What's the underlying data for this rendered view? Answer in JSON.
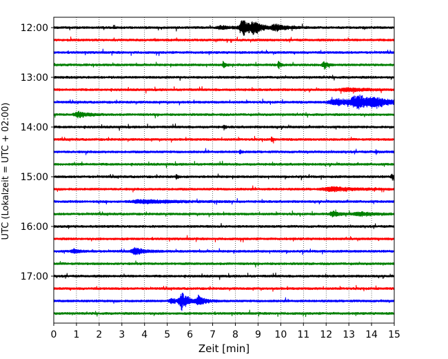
{
  "chart_data": {
    "type": "line",
    "subtype": "helicorder",
    "xlabel": "Zeit  [min]",
    "ylabel": "UTC (Lokalzeit = UTC + 02:00)",
    "xlim": [
      0,
      15
    ],
    "x_ticks": [
      "0",
      "1",
      "2",
      "3",
      "4",
      "5",
      "6",
      "7",
      "8",
      "9",
      "10",
      "11",
      "12",
      "13",
      "14",
      "15"
    ],
    "y_tick_labels": [
      "12:00",
      "13:00",
      "14:00",
      "15:00",
      "16:00",
      "17:00"
    ],
    "grid": "vertical dotted at each minute",
    "trace_interval_minutes": 15,
    "trace_colors": [
      "#000000",
      "#ff0000",
      "#0000ff",
      "#008000"
    ],
    "traces": [
      {
        "start": "12:00",
        "color": "#000000",
        "events": [
          {
            "t": 8.35,
            "amp": 1.0,
            "dur": 0.45
          },
          {
            "t": 8.85,
            "amp": 0.6,
            "dur": 0.4
          },
          {
            "t": 9.8,
            "amp": 0.35,
            "dur": 0.6
          },
          {
            "t": 7.4,
            "amp": 0.2,
            "dur": 0.5
          }
        ]
      },
      {
        "start": "12:15",
        "color": "#ff0000",
        "events": []
      },
      {
        "start": "12:30",
        "color": "#0000ff",
        "events": []
      },
      {
        "start": "12:45",
        "color": "#008000",
        "events": [
          {
            "t": 9.9,
            "amp": 0.5,
            "dur": 0.1
          },
          {
            "t": 11.9,
            "amp": 0.4,
            "dur": 0.2
          },
          {
            "t": 7.5,
            "amp": 0.3,
            "dur": 0.15
          }
        ]
      },
      {
        "start": "13:00",
        "color": "#000000",
        "events": []
      },
      {
        "start": "13:15",
        "color": "#ff0000",
        "events": [
          {
            "t": 13.0,
            "amp": 0.2,
            "dur": 1.0
          }
        ]
      },
      {
        "start": "13:30",
        "color": "#0000ff",
        "events": [
          {
            "t": 13.4,
            "amp": 0.8,
            "dur": 0.8
          },
          {
            "t": 12.5,
            "amp": 0.35,
            "dur": 1.0
          },
          {
            "t": 14.2,
            "amp": 0.45,
            "dur": 0.7
          }
        ]
      },
      {
        "start": "13:45",
        "color": "#008000",
        "events": [
          {
            "t": 1.1,
            "amp": 0.35,
            "dur": 0.5
          }
        ]
      },
      {
        "start": "14:00",
        "color": "#000000",
        "events": [
          {
            "t": 7.5,
            "amp": 0.35,
            "dur": 0.06
          }
        ]
      },
      {
        "start": "14:15",
        "color": "#ff0000",
        "events": [
          {
            "t": 9.6,
            "amp": 0.3,
            "dur": 0.08
          }
        ]
      },
      {
        "start": "14:30",
        "color": "#0000ff",
        "events": [
          {
            "t": 8.2,
            "amp": 0.3,
            "dur": 0.08
          },
          {
            "t": 14.2,
            "amp": 0.3,
            "dur": 0.06
          }
        ]
      },
      {
        "start": "14:45",
        "color": "#008000",
        "events": []
      },
      {
        "start": "15:00",
        "color": "#000000",
        "events": [
          {
            "t": 5.4,
            "amp": 0.3,
            "dur": 0.08
          },
          {
            "t": 14.9,
            "amp": 0.3,
            "dur": 0.15
          }
        ]
      },
      {
        "start": "15:15",
        "color": "#ff0000",
        "events": [
          {
            "t": 12.3,
            "amp": 0.25,
            "dur": 1.2
          }
        ]
      },
      {
        "start": "15:30",
        "color": "#0000ff",
        "events": [
          {
            "t": 4.0,
            "amp": 0.2,
            "dur": 1.5
          }
        ]
      },
      {
        "start": "15:45",
        "color": "#008000",
        "events": [
          {
            "t": 12.3,
            "amp": 0.35,
            "dur": 0.3
          },
          {
            "t": 13.5,
            "amp": 0.2,
            "dur": 0.8
          }
        ]
      },
      {
        "start": "16:00",
        "color": "#000000",
        "events": []
      },
      {
        "start": "16:15",
        "color": "#ff0000",
        "events": []
      },
      {
        "start": "16:30",
        "color": "#0000ff",
        "events": [
          {
            "t": 3.6,
            "amp": 0.4,
            "dur": 0.5
          },
          {
            "t": 0.9,
            "amp": 0.2,
            "dur": 0.4
          }
        ]
      },
      {
        "start": "16:45",
        "color": "#008000",
        "events": []
      },
      {
        "start": "17:00",
        "color": "#000000",
        "events": []
      },
      {
        "start": "17:15",
        "color": "#ff0000",
        "events": []
      },
      {
        "start": "17:30",
        "color": "#0000ff",
        "events": [
          {
            "t": 5.65,
            "amp": 1.0,
            "dur": 0.35
          },
          {
            "t": 6.4,
            "amp": 0.6,
            "dur": 0.35
          },
          {
            "t": 5.2,
            "amp": 0.35,
            "dur": 0.3
          }
        ]
      },
      {
        "start": "17:45",
        "color": "#008000",
        "events": []
      }
    ]
  }
}
